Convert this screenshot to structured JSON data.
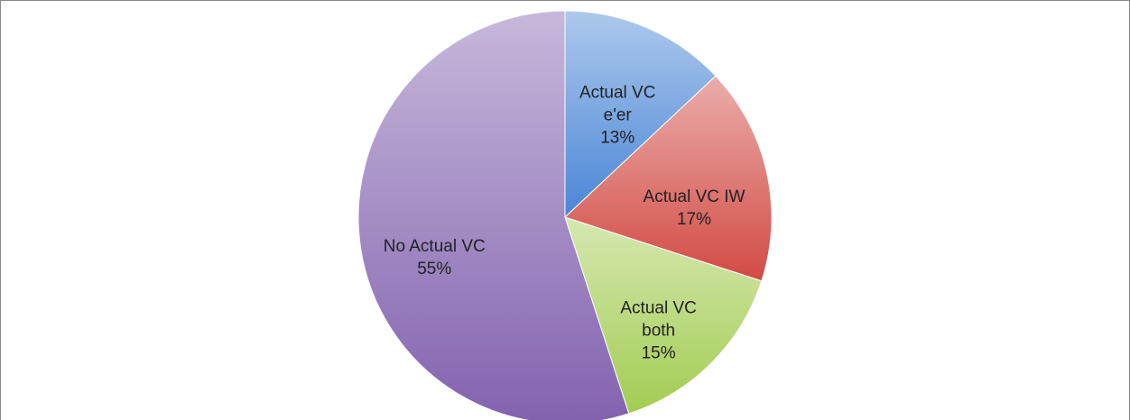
{
  "chart_data": {
    "type": "pie",
    "categories": [
      "Actual VC e'er",
      "Actual VC IW",
      "Actual VC both",
      "No Actual VC"
    ],
    "values": [
      13,
      17,
      15,
      55
    ],
    "value_labels": [
      "13%",
      "17%",
      "15%",
      "55%"
    ],
    "colors": [
      "#4a86d6",
      "#d24a44",
      "#a3cc52",
      "#8262af"
    ]
  }
}
